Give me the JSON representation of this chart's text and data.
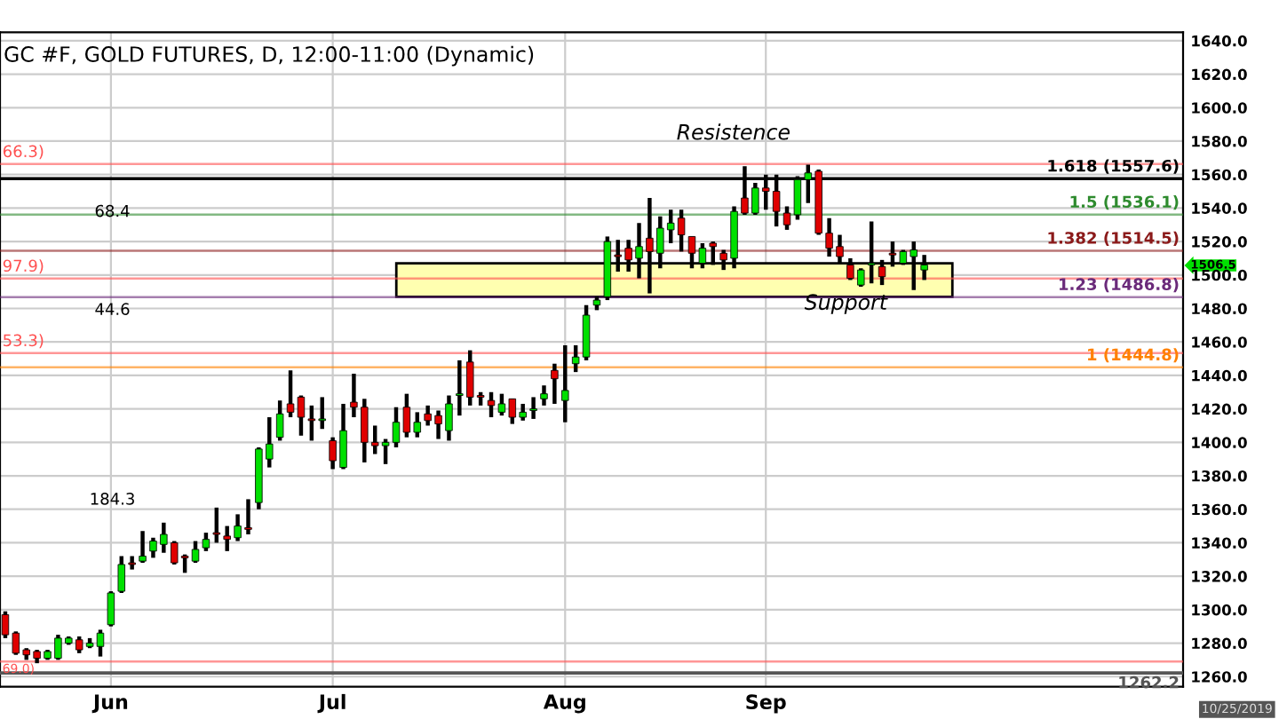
{
  "chart_data": {
    "type": "candlestick",
    "title": "GC #F, GOLD FUTURES, D, 12:00-11:00 (Dynamic)",
    "categories": [
      null,
      null,
      null,
      null,
      null,
      null,
      null,
      null,
      null,
      null,
      "Jun",
      null,
      null,
      null,
      null,
      null,
      null,
      null,
      null,
      null,
      null,
      null,
      null,
      null,
      null,
      null,
      null,
      null,
      null,
      null,
      null,
      "Jul",
      null,
      null,
      null,
      null,
      null,
      null,
      null,
      null,
      null,
      null,
      null,
      null,
      null,
      null,
      null,
      null,
      null,
      null,
      null,
      null,
      null,
      "Aug",
      null,
      null,
      null,
      null,
      null,
      null,
      null,
      null,
      null,
      null,
      null,
      null,
      null,
      null,
      null,
      null,
      null,
      null,
      "Sep",
      null,
      null,
      null,
      null,
      null,
      null,
      null,
      null,
      null,
      null,
      null,
      null,
      null,
      null,
      null,
      null,
      null,
      null,
      null,
      null,
      null,
      null,
      null,
      null,
      null,
      null,
      null,
      null,
      null,
      null,
      null,
      null,
      null,
      null,
      null,
      null,
      null,
      null,
      null
    ],
    "ohlc": [
      [
        1297,
        1299,
        1283,
        1285
      ],
      [
        1286,
        1287,
        1273,
        1274
      ],
      [
        1276,
        1277,
        1270,
        1273
      ],
      [
        1275,
        1276,
        1268,
        1271
      ],
      [
        1271,
        1276,
        1270,
        1275
      ],
      [
        1271,
        1285,
        1270,
        1283
      ],
      [
        1280,
        1284,
        1279,
        1283
      ],
      [
        1282,
        1284,
        1274,
        1276
      ],
      [
        1278,
        1283,
        1277,
        1280
      ],
      [
        1278,
        1288,
        1272,
        1286
      ],
      [
        1291,
        1311,
        1290,
        1310
      ],
      [
        1311,
        1332,
        1310,
        1327
      ],
      [
        1328,
        1332,
        1324,
        1327
      ],
      [
        1329,
        1347,
        1328,
        1332
      ],
      [
        1335,
        1343,
        1331,
        1341
      ],
      [
        1339,
        1352,
        1334,
        1345
      ],
      [
        1340,
        1341,
        1327,
        1328
      ],
      [
        1332,
        1333,
        1322,
        1331
      ],
      [
        1329,
        1341,
        1328,
        1336
      ],
      [
        1337,
        1346,
        1335,
        1342
      ],
      [
        1346,
        1361,
        1340,
        1345
      ],
      [
        1344,
        1350,
        1335,
        1342
      ],
      [
        1343,
        1357,
        1341,
        1350
      ],
      [
        1349,
        1366,
        1345,
        1348
      ],
      [
        1364,
        1397,
        1360,
        1396
      ],
      [
        1390,
        1415,
        1385,
        1399
      ],
      [
        1403,
        1425,
        1401,
        1417
      ],
      [
        1423,
        1443,
        1415,
        1418
      ],
      [
        1427,
        1428,
        1404,
        1415
      ],
      [
        1414,
        1422,
        1401,
        1413
      ],
      [
        1413,
        1427,
        1408,
        1414
      ],
      [
        1401,
        1403,
        1384,
        1389
      ],
      [
        1385,
        1423,
        1384,
        1407
      ],
      [
        1424,
        1441,
        1415,
        1421
      ],
      [
        1421,
        1426,
        1388,
        1400
      ],
      [
        1400,
        1410,
        1393,
        1398
      ],
      [
        1398,
        1402,
        1387,
        1400
      ],
      [
        1400,
        1421,
        1397,
        1412
      ],
      [
        1421,
        1429,
        1403,
        1406
      ],
      [
        1406,
        1418,
        1403,
        1412
      ],
      [
        1417,
        1422,
        1410,
        1413
      ],
      [
        1416,
        1419,
        1402,
        1411
      ],
      [
        1407,
        1428,
        1401,
        1423
      ],
      [
        1428,
        1449,
        1416,
        1429
      ],
      [
        1448,
        1455,
        1422,
        1427
      ],
      [
        1428,
        1430,
        1422,
        1427
      ],
      [
        1425,
        1430,
        1415,
        1422
      ],
      [
        1418,
        1429,
        1416,
        1423
      ],
      [
        1426,
        1426,
        1411,
        1415
      ],
      [
        1415,
        1423,
        1413,
        1418
      ],
      [
        1419,
        1427,
        1414,
        1420
      ],
      [
        1426,
        1434,
        1422,
        1429
      ],
      [
        1443,
        1447,
        1423,
        1438
      ],
      [
        1425,
        1458,
        1412,
        1431
      ],
      [
        1447,
        1458,
        1442,
        1451
      ],
      [
        1451,
        1482,
        1449,
        1476
      ],
      [
        1482,
        1487,
        1479,
        1485
      ],
      [
        1487,
        1523,
        1485,
        1520
      ],
      [
        1512,
        1521,
        1502,
        1511
      ],
      [
        1516,
        1521,
        1502,
        1509
      ],
      [
        1510,
        1531,
        1498,
        1517
      ],
      [
        1522,
        1546,
        1489,
        1514
      ],
      [
        1513,
        1535,
        1504,
        1528
      ],
      [
        1527,
        1539,
        1519,
        1531
      ],
      [
        1534,
        1539,
        1514,
        1524
      ],
      [
        1523,
        1523,
        1504,
        1513
      ],
      [
        1507,
        1519,
        1504,
        1516
      ],
      [
        1519,
        1520,
        1506,
        1517
      ],
      [
        1513,
        1515,
        1503,
        1509
      ],
      [
        1510,
        1541,
        1504,
        1538
      ],
      [
        1546,
        1565,
        1536,
        1537
      ],
      [
        1537,
        1555,
        1536,
        1552
      ],
      [
        1552,
        1560,
        1539,
        1550
      ],
      [
        1550,
        1560,
        1529,
        1538
      ],
      [
        1537,
        1541,
        1527,
        1530
      ],
      [
        1536,
        1559,
        1533,
        1557
      ],
      [
        1557,
        1566,
        1543,
        1561
      ],
      [
        1562,
        1563,
        1524,
        1525
      ],
      [
        1525,
        1534,
        1511,
        1516
      ],
      [
        1517,
        1524,
        1507,
        1511
      ],
      [
        1506,
        1510,
        1497,
        1498
      ],
      [
        1494,
        1504,
        1493,
        1503
      ],
      [
        1506,
        1532,
        1495,
        1507
      ],
      [
        1505,
        1509,
        1494,
        1499
      ],
      [
        1513,
        1520,
        1505,
        1512
      ],
      [
        1507,
        1515,
        1506,
        1514
      ],
      [
        1511,
        1520,
        1491,
        1515
      ],
      [
        1503,
        1512,
        1497,
        1506
      ],
      null,
      null,
      null,
      null,
      null,
      null,
      null,
      null,
      null,
      null,
      null,
      null,
      null,
      null,
      null,
      null,
      null,
      null,
      null,
      null,
      null,
      null,
      null,
      null
    ],
    "ylim": [
      1254,
      1645
    ],
    "yticks": [
      {
        "value": 1506.5,
        "label": "1506.5"
      },
      {
        "value": 1260,
        "label": "1260.0"
      },
      {
        "value": 1280,
        "label": "1280.0"
      },
      {
        "value": 1300,
        "label": "1300.0"
      },
      {
        "value": 1320,
        "label": "1320.0"
      },
      {
        "value": 1340,
        "label": "1340.0"
      },
      {
        "value": 1360,
        "label": "1360.0"
      },
      {
        "value": 1380,
        "label": "1380.0"
      },
      {
        "value": 1400,
        "label": "1400.0"
      },
      {
        "value": 1420,
        "label": "1420.0"
      },
      {
        "value": 1440,
        "label": "1440.0"
      },
      {
        "value": 1460,
        "label": "1460.0"
      },
      {
        "value": 1480,
        "label": "1480.0"
      },
      {
        "value": 1500,
        "label": "1500.0"
      },
      {
        "value": 1520,
        "label": "1520.0"
      },
      {
        "value": 1540,
        "label": "1540.0"
      },
      {
        "value": 1560,
        "label": "1560.0"
      },
      {
        "value": 1580,
        "label": "1580.0"
      },
      {
        "value": 1600,
        "label": "1600.0"
      },
      {
        "value": 1620,
        "label": "1620.0"
      },
      {
        "value": 1640,
        "label": "1640.0"
      }
    ],
    "grid": true,
    "ref_lines": [
      {
        "axis": "y",
        "value": 1566.3,
        "color": "#ff5050"
      },
      {
        "axis": "y",
        "value": 1497.9,
        "color": "#ff5050"
      },
      {
        "axis": "y",
        "value": 1453.3,
        "color": "#ff5050"
      },
      {
        "axis": "y",
        "value": 1269.0,
        "color": "#ff5050"
      },
      {
        "axis": "y",
        "value": 1557.6,
        "label": "1.618 (1557.6)",
        "color": "#000000"
      },
      {
        "axis": "y",
        "value": 1536.1,
        "label": "1.5 (1536.1)",
        "color": "#2e8b2e"
      },
      {
        "axis": "y",
        "value": 1514.5,
        "label": "1.382 (1514.5)",
        "color": "#8b1a1a"
      },
      {
        "axis": "y",
        "value": 1486.8,
        "label": "1.23 (1486.8)",
        "color": "#6a2a7a"
      },
      {
        "axis": "y",
        "value": 1444.8,
        "label": "1 (1444.8)",
        "color": "#ff8000"
      },
      {
        "axis": "y",
        "value": 1262.2,
        "label": "1262.2",
        "color": "#555555"
      }
    ],
    "bands": [
      {
        "axis": "y",
        "from": 1487,
        "to": 1507,
        "color": "#ffffb0"
      }
    ],
    "annotations": [
      "Resistence",
      "Support",
      "68.4",
      "44.6",
      "184.3",
      "10/25/2019",
      {
        "text": "66.3)",
        "y": 1566.3
      },
      {
        "text": "97.9)",
        "y": 1497.9
      },
      {
        "text": "53.3)",
        "y": 1453.3
      },
      {
        "text": "69.0)",
        "y": 1269.0
      }
    ]
  }
}
